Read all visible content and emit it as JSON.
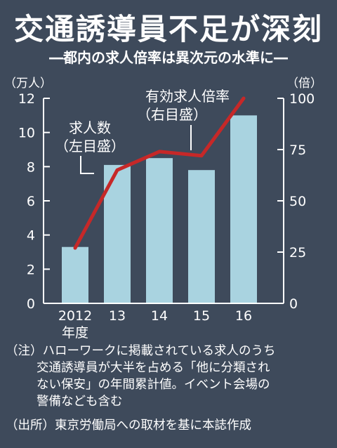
{
  "header": {
    "title": "交通誘導員不足が深刻",
    "subtitle": "―都内の求人倍率は異次元の水準に―"
  },
  "chart_data": {
    "type": "bar",
    "categories": [
      "2012",
      "13",
      "14",
      "15",
      "16"
    ],
    "xlabel_suffix": "年度",
    "left_unit": "（万人）",
    "right_unit": "（倍）",
    "left_axis": {
      "min": 0,
      "max": 12,
      "ticks": [
        "0",
        "2",
        "4",
        "6",
        "8",
        "10",
        "12"
      ]
    },
    "right_axis": {
      "min": 0,
      "max": 100,
      "ticks": [
        "0",
        "25",
        "50",
        "75",
        "100"
      ]
    },
    "series": [
      {
        "name": "求人数（左目盛）",
        "label_lines": [
          "求人数",
          "（左目盛）"
        ],
        "axis": "left",
        "kind": "bar",
        "color": "#a9d3e0",
        "values": [
          3.3,
          8.1,
          8.5,
          7.8,
          11.0
        ]
      },
      {
        "name": "有効求人倍率（右目盛）",
        "label_lines": [
          "有効求人倍率",
          "（右目盛）"
        ],
        "axis": "right",
        "kind": "line",
        "color": "#c62828",
        "values": [
          27,
          65,
          74,
          72,
          100
        ]
      }
    ]
  },
  "notes": {
    "line1": "（注）ハローワークに掲載されている求人のうち",
    "line2": "交通誘導員が大半を占める「他に分類され",
    "line3": "ない保安」の年間累計値。イベント会場の",
    "line4": "警備なども含む",
    "source": "（出所）東京労働局への取材を基に本誌作成"
  }
}
